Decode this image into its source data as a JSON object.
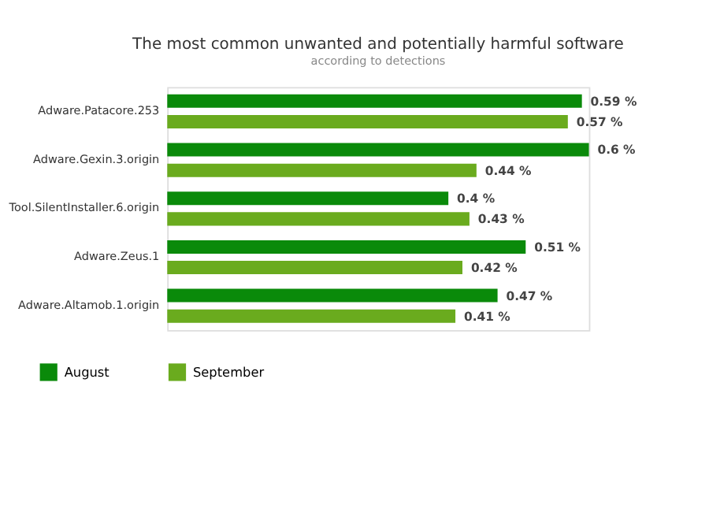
{
  "chart_data": {
    "type": "bar",
    "orientation": "horizontal",
    "title": "The most common unwanted and potentially harmful software",
    "subtitle": "according to detections",
    "categories": [
      "Adware.Patacore.253",
      "Adware.Gexin.3.origin",
      "Tool.SilentInstaller.6.origin",
      "Adware.Zeus.1",
      "Adware.Altamob.1.origin"
    ],
    "series": [
      {
        "name": "August",
        "color": "#0a8a0a",
        "values": [
          0.59,
          0.6,
          0.4,
          0.51,
          0.47
        ],
        "value_labels": [
          "0.59 %",
          "0.6 %",
          "0.4 %",
          "0.51 %",
          "0.47 %"
        ]
      },
      {
        "name": "September",
        "color": "#6aab1e",
        "values": [
          0.57,
          0.44,
          0.43,
          0.42,
          0.41
        ],
        "value_labels": [
          "0.57 %",
          "0.44 %",
          "0.43 %",
          "0.42 %",
          "0.41 %"
        ]
      }
    ],
    "legend": "bottom left",
    "grid": false
  }
}
